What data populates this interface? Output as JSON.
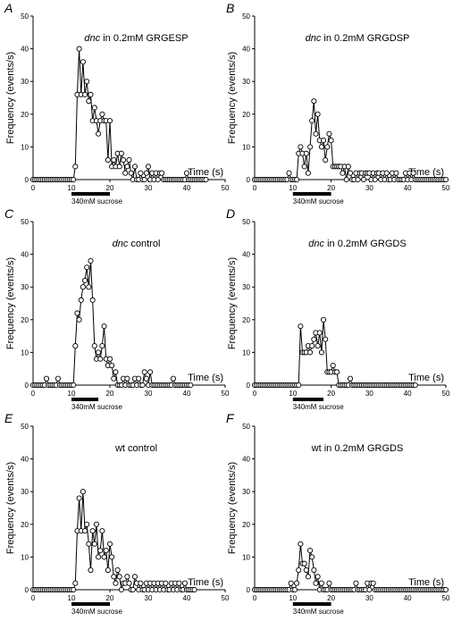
{
  "chart_data": [
    {
      "type": "line",
      "panel": "A",
      "title_italic": "dnc",
      "title_rest": " in 0.2mM GRGESP",
      "xlabel": "Time (s)",
      "ylabel": "Frequency (events/s)",
      "xlim": [
        0,
        50
      ],
      "ylim": [
        0,
        50
      ],
      "xticks": [
        "0",
        "10",
        "20",
        "30",
        "40",
        "50"
      ],
      "yticks": [
        "0",
        "10",
        "20",
        "30",
        "40",
        "50"
      ],
      "stimulus_label": "340mM sucrose",
      "stimulus_range": [
        10,
        20
      ],
      "x": [
        0,
        0.5,
        1,
        1.5,
        2,
        2.5,
        3,
        3.5,
        4,
        4.5,
        5,
        5.5,
        6,
        6.5,
        7,
        7.5,
        8,
        8.5,
        9,
        9.5,
        10,
        10.5,
        11,
        11.5,
        12,
        12.5,
        13,
        13.5,
        14,
        14.5,
        15,
        15.5,
        16,
        16.5,
        17,
        17.5,
        18,
        18.5,
        19,
        19.5,
        20,
        20.5,
        21,
        21.5,
        22,
        22.5,
        23,
        23.5,
        24,
        24.5,
        25,
        25.5,
        26,
        26.5,
        27,
        27.5,
        28,
        28.5,
        29,
        29.5,
        30,
        30.5,
        31,
        31.5,
        32,
        32.5,
        33,
        33.5,
        34,
        34.5,
        35,
        35.5,
        36,
        36.5,
        37,
        37.5,
        38,
        38.5,
        39,
        39.5,
        40,
        40.5,
        41,
        41.5,
        42,
        42.5,
        43,
        43.5,
        44,
        44.5,
        45
      ],
      "y": [
        0,
        0,
        0,
        0,
        0,
        0,
        0,
        0,
        0,
        0,
        0,
        0,
        0,
        0,
        0,
        0,
        0,
        0,
        0,
        0,
        0,
        0,
        4,
        26,
        40,
        26,
        36,
        26,
        30,
        24,
        26,
        18,
        22,
        18,
        14,
        18,
        20,
        18,
        18,
        6,
        18,
        4,
        6,
        4,
        8,
        4,
        8,
        6,
        2,
        4,
        6,
        2,
        0,
        4,
        0,
        0,
        2,
        0,
        0,
        2,
        4,
        0,
        2,
        0,
        2,
        0,
        2,
        2,
        0,
        0,
        0,
        0,
        0,
        0,
        0,
        0,
        0,
        0,
        0,
        0,
        2,
        0,
        0,
        0,
        0,
        0,
        0,
        0,
        0,
        0,
        0
      ]
    },
    {
      "type": "line",
      "panel": "B",
      "title_italic": "dnc",
      "title_rest": " in 0.2mM GRGDSP",
      "xlabel": "Time (s)",
      "ylabel": "Frequency (events/s)",
      "xlim": [
        0,
        50
      ],
      "ylim": [
        0,
        50
      ],
      "xticks": [
        "0",
        "10",
        "20",
        "30",
        "40",
        "50"
      ],
      "yticks": [
        "0",
        "10",
        "20",
        "30",
        "40",
        "50"
      ],
      "stimulus_label": "340mM sucrose",
      "stimulus_range": [
        10,
        20
      ],
      "x": [
        0,
        0.5,
        1,
        1.5,
        2,
        2.5,
        3,
        3.5,
        4,
        4.5,
        5,
        5.5,
        6,
        6.5,
        7,
        7.5,
        8,
        8.5,
        9,
        9.5,
        10,
        10.5,
        11,
        11.5,
        12,
        12.5,
        13,
        13.5,
        14,
        14.5,
        15,
        15.5,
        16,
        16.5,
        17,
        17.5,
        18,
        18.5,
        19,
        19.5,
        20,
        20.5,
        21,
        21.5,
        22,
        22.5,
        23,
        23.5,
        24,
        24.5,
        25,
        25.5,
        26,
        26.5,
        27,
        27.5,
        28,
        28.5,
        29,
        29.5,
        30,
        30.5,
        31,
        31.5,
        32,
        32.5,
        33,
        33.5,
        34,
        34.5,
        35,
        35.5,
        36,
        36.5,
        37,
        37.5,
        38,
        38.5,
        39,
        39.5,
        40,
        40.5,
        41,
        41.5,
        42,
        42.5,
        43,
        43.5,
        44,
        44.5,
        45,
        45.5,
        46,
        46.5,
        47,
        47.5,
        48,
        48.5,
        49,
        49.5,
        50
      ],
      "y": [
        0,
        0,
        0,
        0,
        0,
        0,
        0,
        0,
        0,
        0,
        0,
        0,
        0,
        0,
        0,
        0,
        0,
        0,
        2,
        0,
        0,
        0,
        0,
        8,
        10,
        8,
        4,
        8,
        2,
        10,
        18,
        24,
        14,
        20,
        12,
        10,
        12,
        6,
        10,
        14,
        12,
        4,
        4,
        4,
        4,
        4,
        2,
        4,
        0,
        4,
        2,
        0,
        0,
        2,
        0,
        2,
        2,
        0,
        2,
        2,
        2,
        0,
        2,
        0,
        2,
        2,
        0,
        2,
        0,
        2,
        0,
        0,
        2,
        0,
        2,
        0,
        0,
        0,
        0,
        2,
        0,
        2,
        0,
        2,
        0,
        0,
        0,
        0,
        0,
        0,
        0,
        0,
        0,
        0,
        0,
        0,
        0,
        0,
        0,
        0,
        0
      ]
    },
    {
      "type": "line",
      "panel": "C",
      "title_italic": "dnc",
      "title_rest": "  control",
      "xlabel": "Time (s)",
      "ylabel": "Frequency (events/s)",
      "xlim": [
        0,
        50
      ],
      "ylim": [
        0,
        50
      ],
      "xticks": [
        "0",
        "10",
        "20",
        "30",
        "40",
        "50"
      ],
      "yticks": [
        "0",
        "10",
        "20",
        "30",
        "40",
        "50"
      ],
      "stimulus_label": "340mM sucrose",
      "stimulus_range": [
        10,
        17
      ],
      "x": [
        0,
        0.5,
        1,
        1.5,
        2,
        2.5,
        3,
        3.5,
        4,
        4.5,
        5,
        5.5,
        6,
        6.5,
        7,
        7.5,
        8,
        8.5,
        9,
        9.5,
        10,
        10.5,
        11,
        11.5,
        12,
        12.5,
        13,
        13.5,
        14,
        14.5,
        15,
        15.5,
        16,
        16.5,
        17,
        17.5,
        18,
        18.5,
        19,
        19.5,
        20,
        20.5,
        21,
        21.5,
        22,
        22.5,
        23,
        23.5,
        24,
        24.5,
        25,
        25.5,
        26,
        26.5,
        27,
        27.5,
        28,
        28.5,
        29,
        29.5,
        30,
        30.5,
        31,
        31.5,
        32,
        32.5,
        33,
        33.5,
        34,
        34.5,
        35,
        35.5,
        36,
        36.5,
        37,
        37.5,
        38,
        38.5,
        39,
        39.5,
        40,
        40.5,
        41
      ],
      "y": [
        0,
        0,
        0,
        0,
        0,
        0,
        0,
        2,
        0,
        0,
        0,
        0,
        0,
        2,
        0,
        0,
        0,
        0,
        0,
        0,
        0,
        0,
        12,
        22,
        20,
        26,
        30,
        32,
        36,
        30,
        38,
        26,
        12,
        8,
        10,
        8,
        12,
        18,
        8,
        6,
        8,
        6,
        2,
        4,
        0,
        0,
        0,
        2,
        0,
        2,
        0,
        0,
        0,
        2,
        0,
        2,
        0,
        0,
        4,
        2,
        0,
        4,
        0,
        0,
        0,
        0,
        0,
        0,
        0,
        0,
        0,
        0,
        0,
        2,
        0,
        0,
        0,
        0,
        0,
        0,
        0,
        0,
        0
      ]
    },
    {
      "type": "line",
      "panel": "D",
      "title_italic": "dnc",
      "title_rest": " in 0.2mM GRGDS",
      "xlabel": "Time (s)",
      "ylabel": "Frequency (events/s)",
      "xlim": [
        0,
        50
      ],
      "ylim": [
        0,
        50
      ],
      "xticks": [
        "0",
        "10",
        "20",
        "30",
        "40",
        "50"
      ],
      "yticks": [
        "0",
        "10",
        "20",
        "30",
        "40",
        "50"
      ],
      "stimulus_label": "340mM sucrose",
      "stimulus_range": [
        10,
        18
      ],
      "x": [
        0,
        0.5,
        1,
        1.5,
        2,
        2.5,
        3,
        3.5,
        4,
        4.5,
        5,
        5.5,
        6,
        6.5,
        7,
        7.5,
        8,
        8.5,
        9,
        9.5,
        10,
        10.5,
        11,
        11.5,
        12,
        12.5,
        13,
        13.5,
        14,
        14.5,
        15,
        15.5,
        16,
        16.5,
        17,
        17.5,
        18,
        18.5,
        19,
        19.5,
        20,
        20.5,
        21,
        21.5,
        22,
        22.5,
        23,
        23.5,
        24,
        24.5,
        25,
        25.5,
        26,
        26.5,
        27,
        27.5,
        28,
        28.5,
        29,
        29.5,
        30,
        30.5,
        31,
        31.5,
        32,
        32.5,
        33,
        33.5,
        34,
        34.5,
        35,
        35.5,
        36,
        36.5,
        37,
        37.5,
        38,
        38.5,
        39,
        39.5,
        40,
        40.5,
        41,
        41.5,
        42
      ],
      "y": [
        0,
        0,
        0,
        0,
        0,
        0,
        0,
        0,
        0,
        0,
        0,
        0,
        0,
        0,
        0,
        0,
        0,
        0,
        0,
        0,
        0,
        0,
        0,
        0,
        18,
        10,
        10,
        10,
        12,
        10,
        12,
        14,
        16,
        12,
        16,
        10,
        20,
        14,
        4,
        4,
        4,
        6,
        4,
        4,
        0,
        0,
        0,
        0,
        0,
        0,
        2,
        0,
        0,
        0,
        0,
        0,
        0,
        0,
        0,
        0,
        0,
        0,
        0,
        0,
        0,
        0,
        0,
        0,
        0,
        0,
        0,
        0,
        0,
        0,
        0,
        0,
        0,
        0,
        0,
        0,
        0,
        0,
        0,
        0,
        0
      ]
    },
    {
      "type": "line",
      "panel": "E",
      "title_italic": "",
      "title_rest": "wt  control",
      "xlabel": "Time (s)",
      "ylabel": "Frequency (events/s)",
      "xlim": [
        0,
        50
      ],
      "ylim": [
        0,
        50
      ],
      "xticks": [
        "0",
        "10",
        "20",
        "30",
        "40",
        "50"
      ],
      "yticks": [
        "0",
        "10",
        "20",
        "30",
        "40",
        "50"
      ],
      "stimulus_label": "340mM sucrose",
      "stimulus_range": [
        10,
        20
      ],
      "x": [
        0,
        0.5,
        1,
        1.5,
        2,
        2.5,
        3,
        3.5,
        4,
        4.5,
        5,
        5.5,
        6,
        6.5,
        7,
        7.5,
        8,
        8.5,
        9,
        9.5,
        10,
        10.5,
        11,
        11.5,
        12,
        12.5,
        13,
        13.5,
        14,
        14.5,
        15,
        15.5,
        16,
        16.5,
        17,
        17.5,
        18,
        18.5,
        19,
        19.5,
        20,
        20.5,
        21,
        21.5,
        22,
        22.5,
        23,
        23.5,
        24,
        24.5,
        25,
        25.5,
        26,
        26.5,
        27,
        27.5,
        28,
        28.5,
        29,
        29.5,
        30,
        30.5,
        31,
        31.5,
        32,
        32.5,
        33,
        33.5,
        34,
        34.5,
        35,
        35.5,
        36,
        36.5,
        37,
        37.5,
        38,
        38.5,
        39,
        39.5,
        40,
        40.5,
        41,
        41.5,
        42
      ],
      "y": [
        0,
        0,
        0,
        0,
        0,
        0,
        0,
        0,
        0,
        0,
        0,
        0,
        0,
        0,
        0,
        0,
        0,
        0,
        0,
        0,
        0,
        0,
        2,
        18,
        28,
        18,
        30,
        18,
        20,
        14,
        6,
        18,
        14,
        20,
        10,
        12,
        18,
        10,
        12,
        6,
        14,
        10,
        4,
        2,
        6,
        4,
        0,
        2,
        2,
        4,
        2,
        0,
        0,
        4,
        2,
        0,
        2,
        0,
        0,
        2,
        0,
        2,
        0,
        2,
        0,
        2,
        0,
        2,
        0,
        2,
        0,
        0,
        2,
        0,
        2,
        0,
        2,
        0,
        0,
        2,
        0,
        0,
        0,
        0,
        0
      ]
    },
    {
      "type": "line",
      "panel": "F",
      "title_italic": "",
      "title_rest": "wt in 0.2mM GRGDS",
      "xlabel": "Time (s)",
      "ylabel": "Frequency (events/s)",
      "xlim": [
        0,
        50
      ],
      "ylim": [
        0,
        50
      ],
      "xticks": [
        "0",
        "10",
        "20",
        "30",
        "40",
        "50"
      ],
      "yticks": [
        "0",
        "10",
        "20",
        "30",
        "40",
        "50"
      ],
      "stimulus_label": "340mM sucrose",
      "stimulus_range": [
        10,
        20
      ],
      "x": [
        0,
        0.5,
        1,
        1.5,
        2,
        2.5,
        3,
        3.5,
        4,
        4.5,
        5,
        5.5,
        6,
        6.5,
        7,
        7.5,
        8,
        8.5,
        9,
        9.5,
        10,
        10.5,
        11,
        11.5,
        12,
        12.5,
        13,
        13.5,
        14,
        14.5,
        15,
        15.5,
        16,
        16.5,
        17,
        17.5,
        18,
        18.5,
        19,
        19.5,
        20,
        20.5,
        21,
        21.5,
        22,
        22.5,
        23,
        23.5,
        24,
        24.5,
        25,
        25.5,
        26,
        26.5,
        27,
        27.5,
        28,
        28.5,
        29,
        29.5,
        30,
        30.5,
        31,
        31.5,
        32,
        32.5,
        33,
        33.5,
        34,
        34.5,
        35,
        35.5,
        36,
        36.5,
        37,
        37.5,
        38,
        38.5,
        39,
        39.5,
        40,
        40.5,
        41,
        41.5,
        42,
        42.5,
        43,
        43.5,
        44,
        44.5,
        45,
        45.5,
        46,
        46.5,
        47,
        47.5,
        48,
        48.5,
        49,
        49.5,
        50
      ],
      "y": [
        0,
        0,
        0,
        0,
        0,
        0,
        0,
        0,
        0,
        0,
        0,
        0,
        0,
        0,
        0,
        0,
        0,
        0,
        0,
        2,
        0,
        0,
        2,
        6,
        14,
        8,
        8,
        6,
        4,
        12,
        10,
        6,
        2,
        4,
        0,
        2,
        0,
        0,
        0,
        2,
        0,
        0,
        0,
        0,
        0,
        0,
        0,
        0,
        0,
        0,
        0,
        0,
        0,
        2,
        0,
        0,
        0,
        0,
        0,
        2,
        0,
        2,
        2,
        0,
        0,
        0,
        0,
        0,
        0,
        0,
        0,
        0,
        0,
        0,
        0,
        0,
        0,
        0,
        0,
        0,
        0,
        0,
        0,
        0,
        0,
        0,
        0,
        0,
        0,
        0,
        0,
        0,
        0,
        0,
        0,
        0,
        0,
        0,
        0,
        0,
        0
      ]
    }
  ]
}
